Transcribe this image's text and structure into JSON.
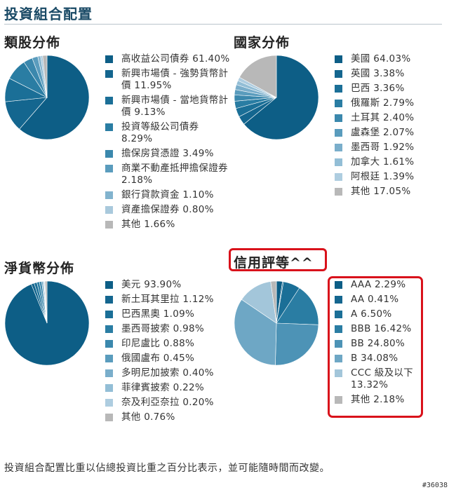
{
  "page": {
    "title": "投資組合配置",
    "footnote": "投資組合配置比重以佔總投資比重之百分比表示，並可能隨時間而改變。",
    "watermark": "#36038"
  },
  "chart_data": [
    {
      "type": "pie",
      "title": "類股分佈",
      "labels": [
        "高收益公司債券 61.40%",
        "新興市場債 - 強勢貨幣計價 11.95%",
        "新興市場債 - 當地貨幣計價 9.13%",
        "投資等級公司債券 8.29%",
        "擔保房貸憑證 3.49%",
        "商業不動產抵押擔保證券 2.18%",
        "銀行貸款資金 1.10%",
        "資產擔保證券 0.80%",
        "其他 1.66%"
      ],
      "categories": [
        "高收益公司債券",
        "新興市場債 - 強勢貨幣計價",
        "新興市場債 - 當地貨幣計價",
        "投資等級公司債券",
        "擔保房貸憑證",
        "商業不動產抵押擔保證券",
        "銀行貸款資金",
        "資產擔保證券",
        "其他"
      ],
      "values": [
        61.4,
        11.95,
        9.13,
        8.29,
        3.49,
        2.18,
        1.1,
        0.8,
        1.66
      ],
      "colors": [
        "#0d5e86",
        "#14668f",
        "#1b6f97",
        "#2a7da3",
        "#3b88ad",
        "#5a9cbd",
        "#82b3ce",
        "#a9c9dc",
        "#b8b8b8"
      ]
    },
    {
      "type": "pie",
      "title": "國家分佈",
      "labels": [
        "美國 64.03%",
        "英國 3.38%",
        "巴西 3.36%",
        "俄羅斯 2.79%",
        "土耳其 2.40%",
        "盧森堡 2.07%",
        "墨西哥 1.92%",
        "加拿大 1.61%",
        "阿根廷 1.39%",
        "其他 17.05%"
      ],
      "categories": [
        "美國",
        "英國",
        "巴西",
        "俄羅斯",
        "土耳其",
        "盧森堡",
        "墨西哥",
        "加拿大",
        "阿根廷",
        "其他"
      ],
      "values": [
        64.03,
        3.38,
        3.36,
        2.79,
        2.4,
        2.07,
        1.92,
        1.61,
        1.39,
        17.05
      ],
      "colors": [
        "#0d5e86",
        "#14668f",
        "#1b6f97",
        "#2a7da3",
        "#3b88ad",
        "#5a9cbd",
        "#7aaecb",
        "#93bed6",
        "#aecde0",
        "#b8b8b8"
      ]
    },
    {
      "type": "pie",
      "title": "淨貨幣分佈",
      "labels": [
        "美元 93.90%",
        "新土耳其里拉 1.12%",
        "巴西黑奧 1.09%",
        "墨西哥披索 0.98%",
        "印尼盧比 0.88%",
        "俄國盧布 0.45%",
        "多明尼加披索 0.40%",
        "菲律賓披索 0.22%",
        "奈及利亞奈拉 0.20%",
        "其他 0.76%"
      ],
      "categories": [
        "美元",
        "新土耳其里拉",
        "巴西黑奧",
        "墨西哥披索",
        "印尼盧比",
        "俄國盧布",
        "多明尼加披索",
        "菲律賓披索",
        "奈及利亞奈拉",
        "其他"
      ],
      "values": [
        93.9,
        1.12,
        1.09,
        0.98,
        0.88,
        0.45,
        0.4,
        0.22,
        0.2,
        0.76
      ],
      "colors": [
        "#0d5e86",
        "#14668f",
        "#1b6f97",
        "#2a7da3",
        "#3b88ad",
        "#5a9cbd",
        "#7aaecb",
        "#93bed6",
        "#aecde0",
        "#b8b8b8"
      ]
    },
    {
      "type": "pie",
      "title": "信用評等^^",
      "labels": [
        "AAA 2.29%",
        "AA 0.41%",
        "A 6.50%",
        "BBB 16.42%",
        "BB 24.80%",
        "B 34.08%",
        "CCC 級及以下 13.32%",
        "其他 2.18%"
      ],
      "categories": [
        "AAA",
        "AA",
        "A",
        "BBB",
        "BB",
        "B",
        "CCC 級及以下",
        "其他"
      ],
      "values": [
        2.29,
        0.41,
        6.5,
        16.42,
        24.8,
        34.08,
        13.32,
        2.18
      ],
      "colors": [
        "#0d5e86",
        "#14668f",
        "#1b6f97",
        "#2a7da3",
        "#4d93b6",
        "#6ea7c5",
        "#a3c6da",
        "#b8b8b8"
      ]
    }
  ]
}
